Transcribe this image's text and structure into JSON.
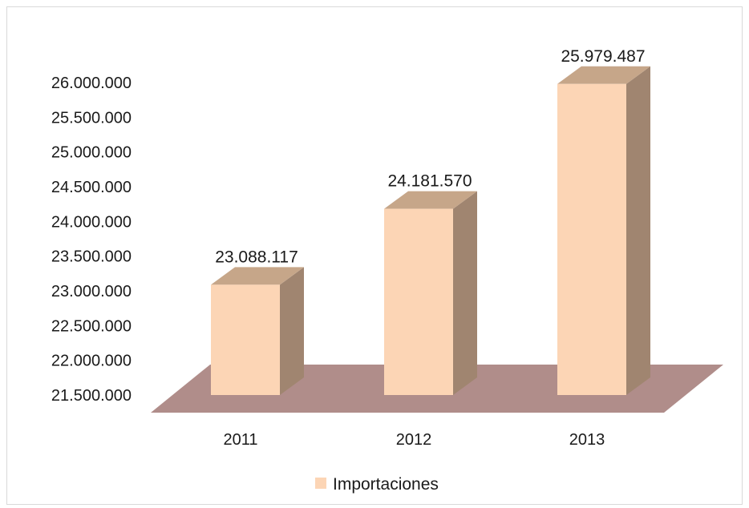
{
  "chart_data": {
    "type": "bar",
    "categories": [
      "2011",
      "2012",
      "2013"
    ],
    "series": [
      {
        "name": "Importaciones",
        "values": [
          23088117,
          24181570,
          25979487
        ]
      }
    ],
    "data_labels": [
      "23.088.117",
      "24.181.570",
      "25.979.487"
    ],
    "y_ticks": [
      21500000,
      22000000,
      22500000,
      23000000,
      23500000,
      24000000,
      24500000,
      25000000,
      25500000,
      26000000
    ],
    "y_tick_labels": [
      "21.500.000",
      "22.000.000",
      "22.500.000",
      "23.000.000",
      "23.500.000",
      "24.000.000",
      "24.500.000",
      "25.000.000",
      "25.500.000",
      "26.000.000"
    ],
    "ylim": [
      21500000,
      26000000
    ],
    "title": "",
    "xlabel": "",
    "ylabel": "",
    "legend_position": "bottom",
    "grid": false,
    "style": "3d-column",
    "colors": {
      "bar_front": "#FCD5B5",
      "bar_top": "#C6A689",
      "bar_side": "#A08570",
      "floor": "#B08D8A"
    }
  }
}
